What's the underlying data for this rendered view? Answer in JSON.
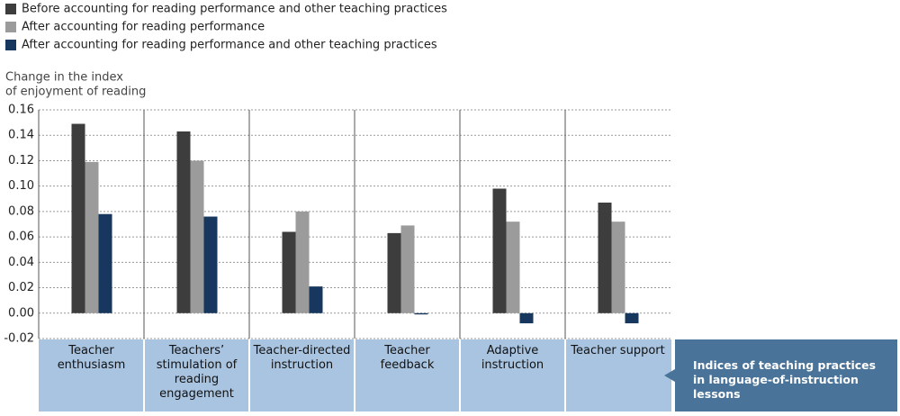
{
  "chart_data": {
    "type": "bar",
    "y_label": [
      "Change in the index",
      "of enjoyment of reading"
    ],
    "categories": [
      "Teacher enthusiasm",
      "Teachers’ stimulation of reading engagement",
      "Teacher-directed instruction",
      "Teacher feedback",
      "Adaptive instruction",
      "Teacher support"
    ],
    "series": [
      {
        "name": "Before accounting for reading performance and other teaching practices",
        "color": "#3d3d3d",
        "values": [
          0.149,
          0.143,
          0.064,
          0.063,
          0.098,
          0.087
        ]
      },
      {
        "name": "After accounting for reading performance",
        "color": "#9b9b9b",
        "values": [
          0.119,
          0.12,
          0.08,
          0.069,
          0.072,
          0.072
        ]
      },
      {
        "name": "After accounting for reading performance and other teaching practices",
        "color": "#17375e",
        "values": [
          0.078,
          0.076,
          0.021,
          -0.001,
          -0.008,
          -0.008
        ]
      }
    ],
    "ylim": [
      -0.02,
      0.16
    ],
    "yticks": [
      -0.02,
      {
        "value": 0,
        "label": "0.00"
      },
      0.02,
      0.04,
      0.06,
      0.08,
      {
        "value": 0.1,
        "label": "0.10"
      },
      0.12,
      0.14,
      0.16
    ],
    "grid": true,
    "annotation": "Indices of teaching practices in language-of-instruction lessons"
  }
}
